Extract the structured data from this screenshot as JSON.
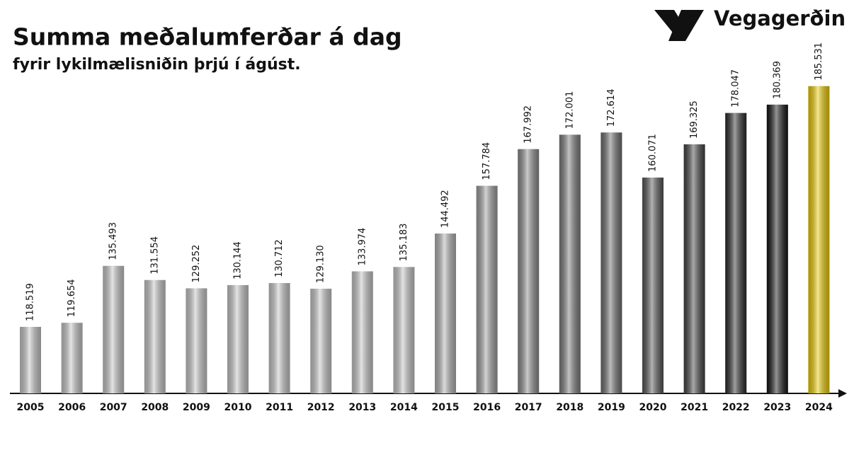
{
  "chart_data": {
    "type": "bar",
    "title": "Summa meðalumferðar á dag",
    "subtitle": "fyrir lykilmælisniðin þrjú í ágúst.",
    "logo_text": "Vegagerðin",
    "categories": [
      "2005",
      "2006",
      "2007",
      "2008",
      "2009",
      "2010",
      "2011",
      "2012",
      "2013",
      "2014",
      "2015",
      "2016",
      "2017",
      "2018",
      "2019",
      "2020",
      "2021",
      "2022",
      "2023",
      "2024"
    ],
    "values": [
      118519,
      119654,
      135493,
      131554,
      129252,
      130144,
      130712,
      129130,
      133974,
      135183,
      144492,
      157784,
      167992,
      172001,
      172614,
      160071,
      169325,
      178047,
      180369,
      185531
    ],
    "value_labels": [
      "118.519",
      "119.654",
      "135.493",
      "131.554",
      "129.252",
      "130.144",
      "130.712",
      "129.130",
      "133.974",
      "135.183",
      "144.492",
      "157.784",
      "167.992",
      "172.001",
      "172.614",
      "160.071",
      "169.325",
      "178.047",
      "180.369",
      "185.531"
    ],
    "colors": [
      "#c4c4c4",
      "#c4c4c4",
      "#c4c4c4",
      "#c4c4c4",
      "#c4c4c4",
      "#c4c4c4",
      "#c4c4c4",
      "#c4c4c4",
      "#c4c4c4",
      "#c4c4c4",
      "#b0b0b0",
      "#9c9c9c",
      "#8a8a8a",
      "#7a7a7a",
      "#6c6c6c",
      "#555555",
      "#424242",
      "#2a2a2a",
      "#121212",
      "#e8c800"
    ],
    "ylim": [
      100000,
      190000
    ]
  }
}
